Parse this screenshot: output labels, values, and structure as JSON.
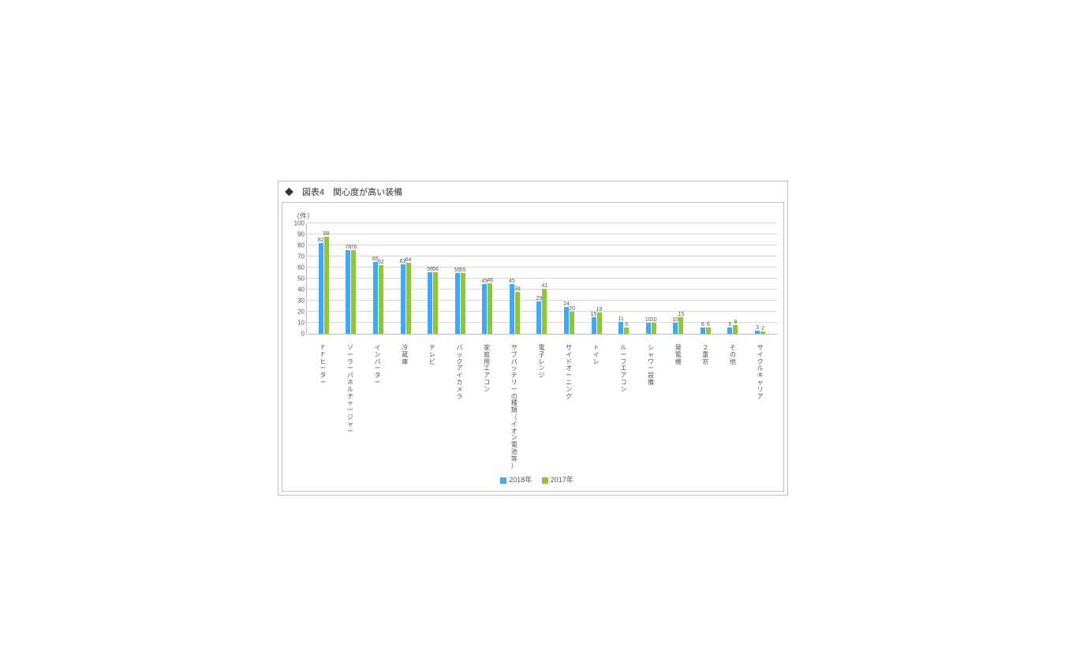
{
  "title": "◆　図表4　関心度が高い装備",
  "unit_label": "（件）",
  "chart": {
    "type": "bar",
    "ylim": [
      0,
      100
    ],
    "ytick_step": 10,
    "series": [
      {
        "name": "2018年",
        "color": "#3fa9f5"
      },
      {
        "name": "2017年",
        "color": "#8cc63f"
      }
    ],
    "grid_color": "#d9d9d9",
    "background_color": "#ffffff",
    "categories": [
      "ＦＦヒーター",
      "ソーラーパネルチャージャー",
      "インバーター",
      "冷蔵庫",
      "テレビ",
      "バックアイカメラ",
      "家庭用エアコン",
      "サブバッテリーの種類（イオン電池等）",
      "電子レンジ",
      "サイドオーニング",
      "トイレ",
      "ルーフエアコン",
      "シャワー設備",
      "発電機",
      "２重窓",
      "その他",
      "サイクルキャリア"
    ],
    "values": {
      "2018": [
        82,
        76,
        65,
        63,
        56,
        55,
        45,
        45,
        29,
        24,
        15,
        11,
        10,
        10,
        6,
        6,
        3
      ],
      "2017": [
        88,
        76,
        62,
        64,
        56,
        55,
        46,
        38,
        41,
        20,
        19,
        6,
        10,
        15,
        6,
        8,
        2
      ]
    },
    "label_fontsize": 8,
    "value_fontsize": 7
  }
}
